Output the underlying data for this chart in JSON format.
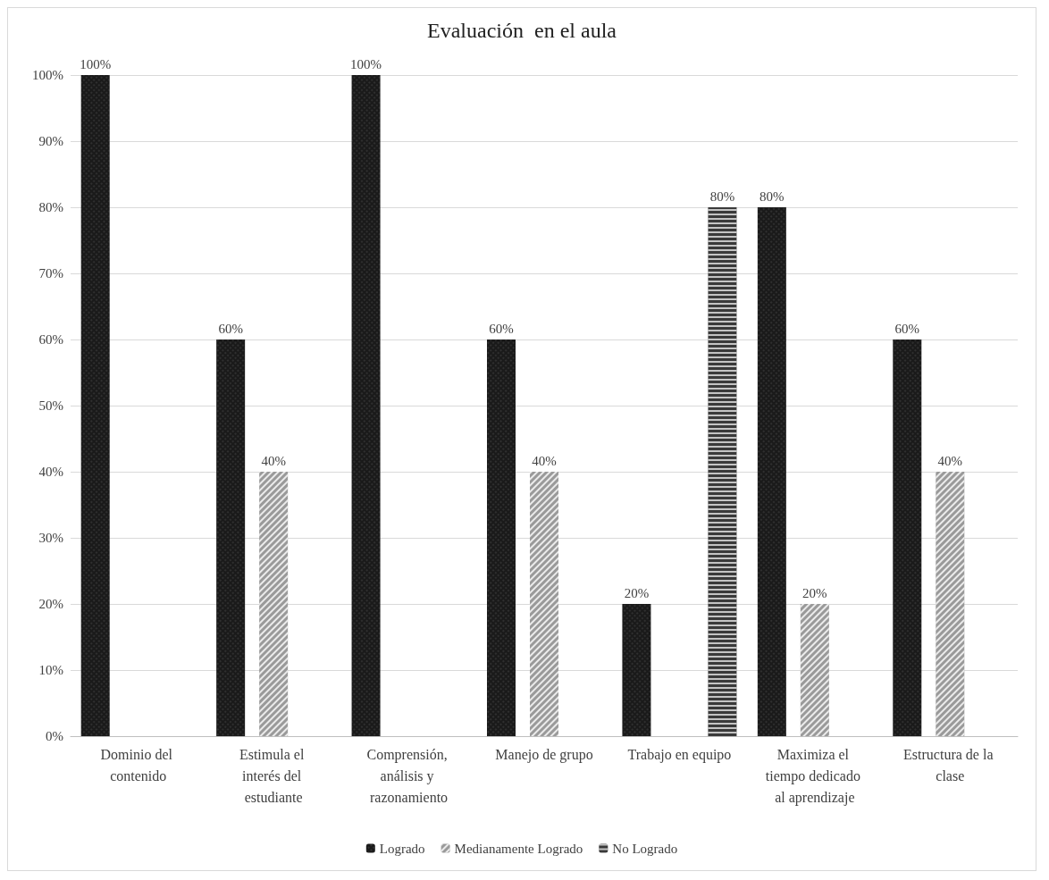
{
  "chart_data": {
    "type": "bar",
    "title": "Evaluación  en el aula",
    "categories": [
      "Dominio del contenido",
      "Estimula el interés del estudiante",
      "Comprensión, análisis y razonamiento",
      "Manejo de grupo",
      "Trabajo en equipo",
      "Maximiza el tiempo dedicado al aprendizaje",
      "Estructura de la clase"
    ],
    "series": [
      {
        "name": "Logrado",
        "color": "#1a1a1a",
        "values": [
          100,
          60,
          100,
          60,
          20,
          80,
          60
        ],
        "value_labels": [
          "100%",
          "60%",
          "100%",
          "60%",
          "20%",
          "80%",
          "60%"
        ]
      },
      {
        "name": "Medianamente Logrado",
        "color": "#9a9a9a",
        "values": [
          null,
          40,
          null,
          40,
          null,
          20,
          40
        ],
        "value_labels": [
          null,
          "40%",
          null,
          "40%",
          null,
          "20%",
          "40%"
        ]
      },
      {
        "name": "No Logrado",
        "color": "#3a3a3a",
        "values": [
          null,
          null,
          null,
          null,
          80,
          null,
          null
        ],
        "value_labels": [
          null,
          null,
          null,
          null,
          "80%",
          null,
          null
        ]
      }
    ],
    "ylim": [
      0,
      100
    ],
    "yticks": [
      {
        "value": 0,
        "label": "0%"
      },
      {
        "value": 10,
        "label": "10%"
      },
      {
        "value": 20,
        "label": "20%"
      },
      {
        "value": 30,
        "label": "30%"
      },
      {
        "value": 40,
        "label": "40%"
      },
      {
        "value": 50,
        "label": "50%"
      },
      {
        "value": 60,
        "label": "60%"
      },
      {
        "value": 70,
        "label": "70%"
      },
      {
        "value": 80,
        "label": "80%"
      },
      {
        "value": 90,
        "label": "90%"
      },
      {
        "value": 100,
        "label": "100%"
      }
    ],
    "grid": "y",
    "legend": "bottom"
  }
}
